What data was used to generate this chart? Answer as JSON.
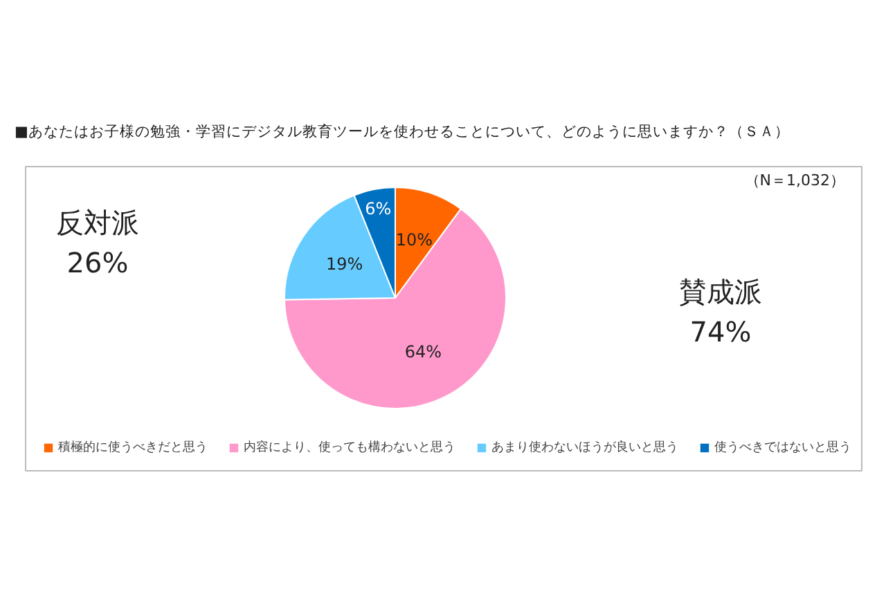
{
  "chart_data": {
    "type": "pie",
    "title": "■あなたはお子様の勉強・学習にデジタル教育ツールを使わせることについて、どのように思いますか？（ＳＡ）",
    "categories": [
      "積極的に使うべきだと思う",
      "内容により、使っても構わないと思う",
      "あまり使わないほうが良いと思う",
      "使うべきではないと思う"
    ],
    "values": [
      10,
      64,
      19,
      6
    ],
    "colors": [
      "#ff6600",
      "#ff99cc",
      "#66ccff",
      "#0070c0"
    ],
    "value_labels": [
      "10%",
      "64%",
      "19%",
      "6%"
    ],
    "legend": "bottom",
    "annotations": [
      "（N＝1,032）",
      "反対派\n26%",
      "賛成派\n74%"
    ]
  }
}
